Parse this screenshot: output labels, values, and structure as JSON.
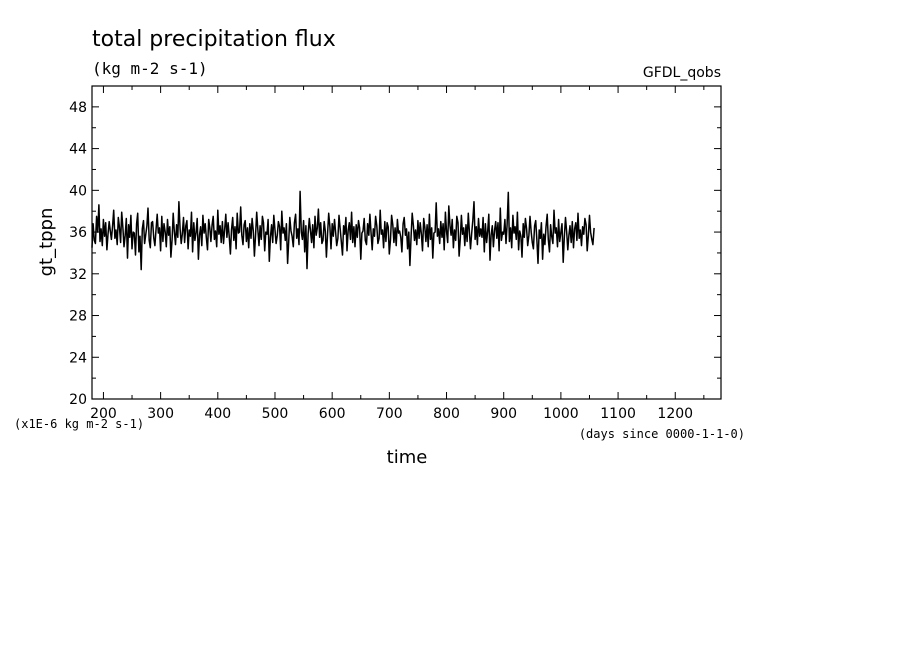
{
  "chart_data": {
    "type": "line",
    "title": "total precipitation flux",
    "subtitle": "(kg m-2 s-1)",
    "source_label": "GFDL_qobs",
    "xlabel": "time",
    "x_units": "(days since 0000-1-1-0)",
    "ylabel": "gt_tppn",
    "y_units": "(x1E-6 kg m-2 s-1)",
    "xlim": [
      180,
      1280
    ],
    "ylim": [
      20,
      50
    ],
    "x_ticks": [
      200,
      300,
      400,
      500,
      600,
      700,
      800,
      900,
      1000,
      1100,
      1200
    ],
    "y_ticks": [
      20,
      24,
      28,
      32,
      36,
      40,
      44,
      48
    ],
    "grid": false,
    "series": [
      {
        "color": "#000000",
        "x_start": 180,
        "x_step": 2,
        "values": [
          34.5,
          36.8,
          35.2,
          34.9,
          37.5,
          36.0,
          38.6,
          35.1,
          36.3,
          34.7,
          37.2,
          35.6,
          36.9,
          34.3,
          35.8,
          37.0,
          36.1,
          35.3,
          36.6,
          38.1,
          35.4,
          36.2,
          34.8,
          37.4,
          36.5,
          35.0,
          37.9,
          36.4,
          34.6,
          35.7,
          37.3,
          33.5,
          36.7,
          35.5,
          37.6,
          34.4,
          36.0,
          35.9,
          33.8,
          36.8,
          37.8,
          34.1,
          35.6,
          32.4,
          36.3,
          37.1,
          34.9,
          35.8,
          36.6,
          38.3,
          35.2,
          34.5,
          36.9,
          37.0,
          35.4,
          34.7,
          36.2,
          37.7,
          35.9,
          36.4,
          34.2,
          37.5,
          35.1,
          36.8,
          36.0,
          34.6,
          37.2,
          35.7,
          36.5,
          33.6,
          35.3,
          37.8,
          36.1,
          34.8,
          36.7,
          35.5,
          38.9,
          36.3,
          34.9,
          35.8,
          37.4,
          35.0,
          36.6,
          37.1,
          34.4,
          36.2,
          35.6,
          37.9,
          34.1,
          36.9,
          35.2,
          36.0,
          37.3,
          33.4,
          35.7,
          36.5,
          34.7,
          37.6,
          35.9,
          36.8,
          35.4,
          34.3,
          37.2,
          36.4,
          35.1,
          36.7,
          37.5,
          35.3,
          36.1,
          34.6,
          38.1,
          35.8,
          36.6,
          35.0,
          37.0,
          34.9,
          36.3,
          37.7,
          35.5,
          36.9,
          35.6,
          33.9,
          36.2,
          37.4,
          35.2,
          36.5,
          34.4,
          37.8,
          35.9,
          36.0,
          38.4,
          35.7,
          34.8,
          36.7,
          37.1,
          35.1,
          36.4,
          34.5,
          36.8,
          35.4,
          37.3,
          36.1,
          33.7,
          35.6,
          37.9,
          36.3,
          34.7,
          36.6,
          35.3,
          37.5,
          36.9,
          34.2,
          36.0,
          35.8,
          37.2,
          33.2,
          35.5,
          36.7,
          35.0,
          37.6,
          36.2,
          34.9,
          35.7,
          37.0,
          36.5,
          34.3,
          38.0,
          35.9,
          36.4,
          35.2,
          36.8,
          33.0,
          35.1,
          37.4,
          36.1,
          35.6,
          34.6,
          36.9,
          37.7,
          35.4,
          36.3,
          34.8,
          39.9,
          36.0,
          35.3,
          37.1,
          34.1,
          36.6,
          32.5,
          35.8,
          37.3,
          36.2,
          35.0,
          36.7,
          34.5,
          37.5,
          35.7,
          36.4,
          38.2,
          35.5,
          36.9,
          34.9,
          35.2,
          37.0,
          36.1,
          33.6,
          35.9,
          37.8,
          36.5,
          34.4,
          36.8,
          35.6,
          37.2,
          36.0,
          34.7,
          35.4,
          37.6,
          36.3,
          35.1,
          33.8,
          36.6,
          35.8,
          37.4,
          34.2,
          36.2,
          36.9,
          35.3,
          37.9,
          35.0,
          36.5,
          34.6,
          36.7,
          35.5,
          37.1,
          36.4,
          33.4,
          35.9,
          36.1,
          37.3,
          35.2,
          34.8,
          36.8,
          35.7,
          37.7,
          36.0,
          34.3,
          36.3,
          35.6,
          37.5,
          36.6,
          34.9,
          35.4,
          38.1,
          35.8,
          36.2,
          34.5,
          37.0,
          35.1,
          36.9,
          36.5,
          33.9,
          35.3,
          37.6,
          36.7,
          35.0,
          36.4,
          34.7,
          37.2,
          35.9,
          36.1,
          35.5,
          34.1,
          36.8,
          37.4,
          35.7,
          36.3,
          34.4,
          36.0,
          32.8,
          35.6,
          37.8,
          36.6,
          35.2,
          36.2,
          34.8,
          37.1,
          35.4,
          36.9,
          35.8,
          34.2,
          37.3,
          36.5,
          35.1,
          36.7,
          34.6,
          37.7,
          35.3,
          36.4,
          33.5,
          35.9,
          36.0,
          38.8,
          35.6,
          36.3,
          34.9,
          37.0,
          35.5,
          36.8,
          34.3,
          37.9,
          36.1,
          35.0,
          38.5,
          36.6,
          35.7,
          37.2,
          34.5,
          36.2,
          35.2,
          37.5,
          36.9,
          33.7,
          35.4,
          37.6,
          35.8,
          36.4,
          34.7,
          36.7,
          35.1,
          37.8,
          36.0,
          34.4,
          35.9,
          37.1,
          38.9,
          35.3,
          36.5,
          34.8,
          37.3,
          35.6,
          36.3,
          35.5,
          37.4,
          34.1,
          36.8,
          35.0,
          36.1,
          37.7,
          33.3,
          35.7,
          36.6,
          34.6,
          36.2,
          37.0,
          35.4,
          36.9,
          34.2,
          38.3,
          35.2,
          36.0,
          35.8,
          37.2,
          34.9,
          36.7,
          39.8,
          35.1,
          36.4,
          34.5,
          37.6,
          35.9,
          36.5,
          35.3,
          37.9,
          34.3,
          36.1,
          35.6,
          33.6,
          36.8,
          35.5,
          37.3,
          36.3,
          34.7,
          35.7,
          37.5,
          36.0,
          35.0,
          34.4,
          36.6,
          37.1,
          35.2,
          33.0,
          36.2,
          35.4,
          36.9,
          33.4,
          35.8,
          34.8,
          36.5,
          37.7,
          35.3,
          34.1,
          36.7,
          35.6,
          34.9,
          38.1,
          35.9,
          36.4,
          34.6,
          37.2,
          35.1,
          36.0,
          36.8,
          33.1,
          35.5,
          37.4,
          36.1,
          34.3,
          35.7,
          36.6,
          35.0,
          37.0,
          34.5,
          36.3,
          36.9,
          35.2,
          37.8,
          35.4,
          36.2,
          34.7,
          36.5,
          35.8,
          37.3,
          36.7,
          34.2,
          35.6,
          37.6,
          36.0,
          35.3,
          34.8,
          36.4
        ]
      }
    ]
  }
}
